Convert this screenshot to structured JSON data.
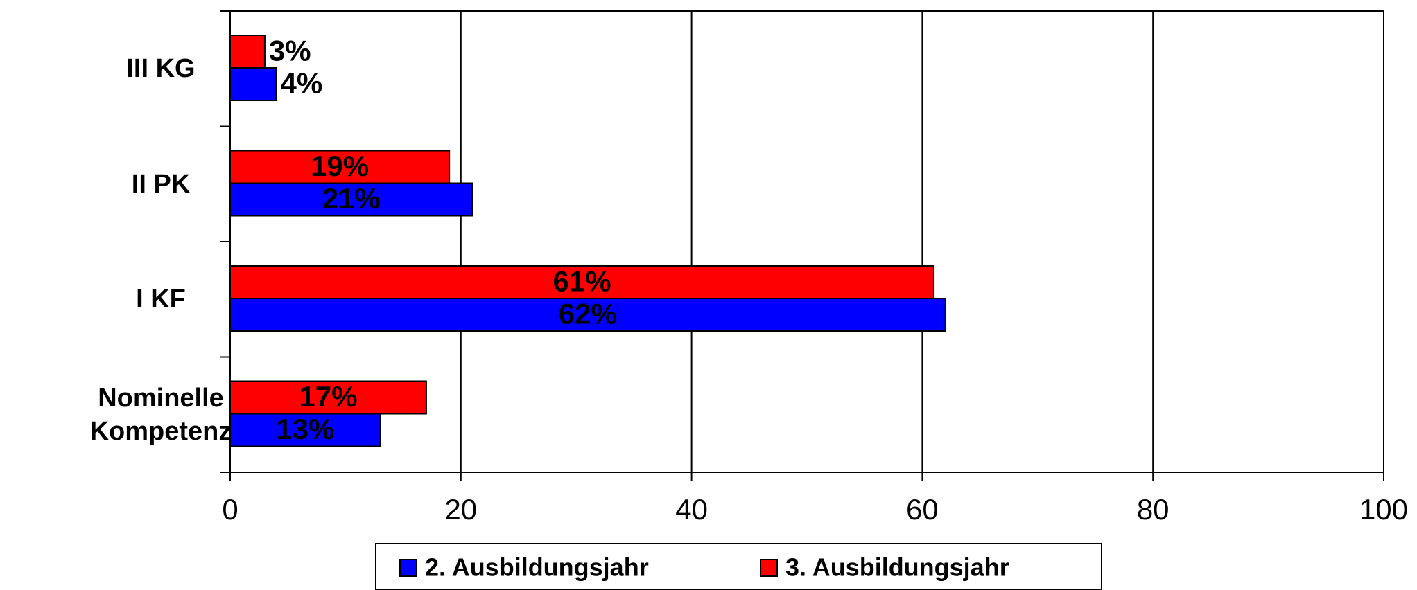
{
  "chart_data": {
    "type": "bar",
    "orientation": "horizontal",
    "categories": [
      "III KG",
      "II PK",
      "I KF",
      "Nominelle Kompetenz"
    ],
    "series": [
      {
        "name": "2. Ausbildungsjahr",
        "color": "#0000ff",
        "values": [
          4,
          21,
          62,
          13
        ],
        "value_labels": [
          "4%",
          "21%",
          "62%",
          "13%"
        ]
      },
      {
        "name": "3. Ausbildungsjahr",
        "color": "#ff0000",
        "values": [
          3,
          19,
          61,
          17
        ],
        "value_labels": [
          "3%",
          "19%",
          "61%",
          "17%"
        ]
      }
    ],
    "xlim": [
      0,
      100
    ],
    "xticks": [
      0,
      20,
      40,
      60,
      80,
      100
    ],
    "grid": true,
    "legend": "bottom"
  }
}
